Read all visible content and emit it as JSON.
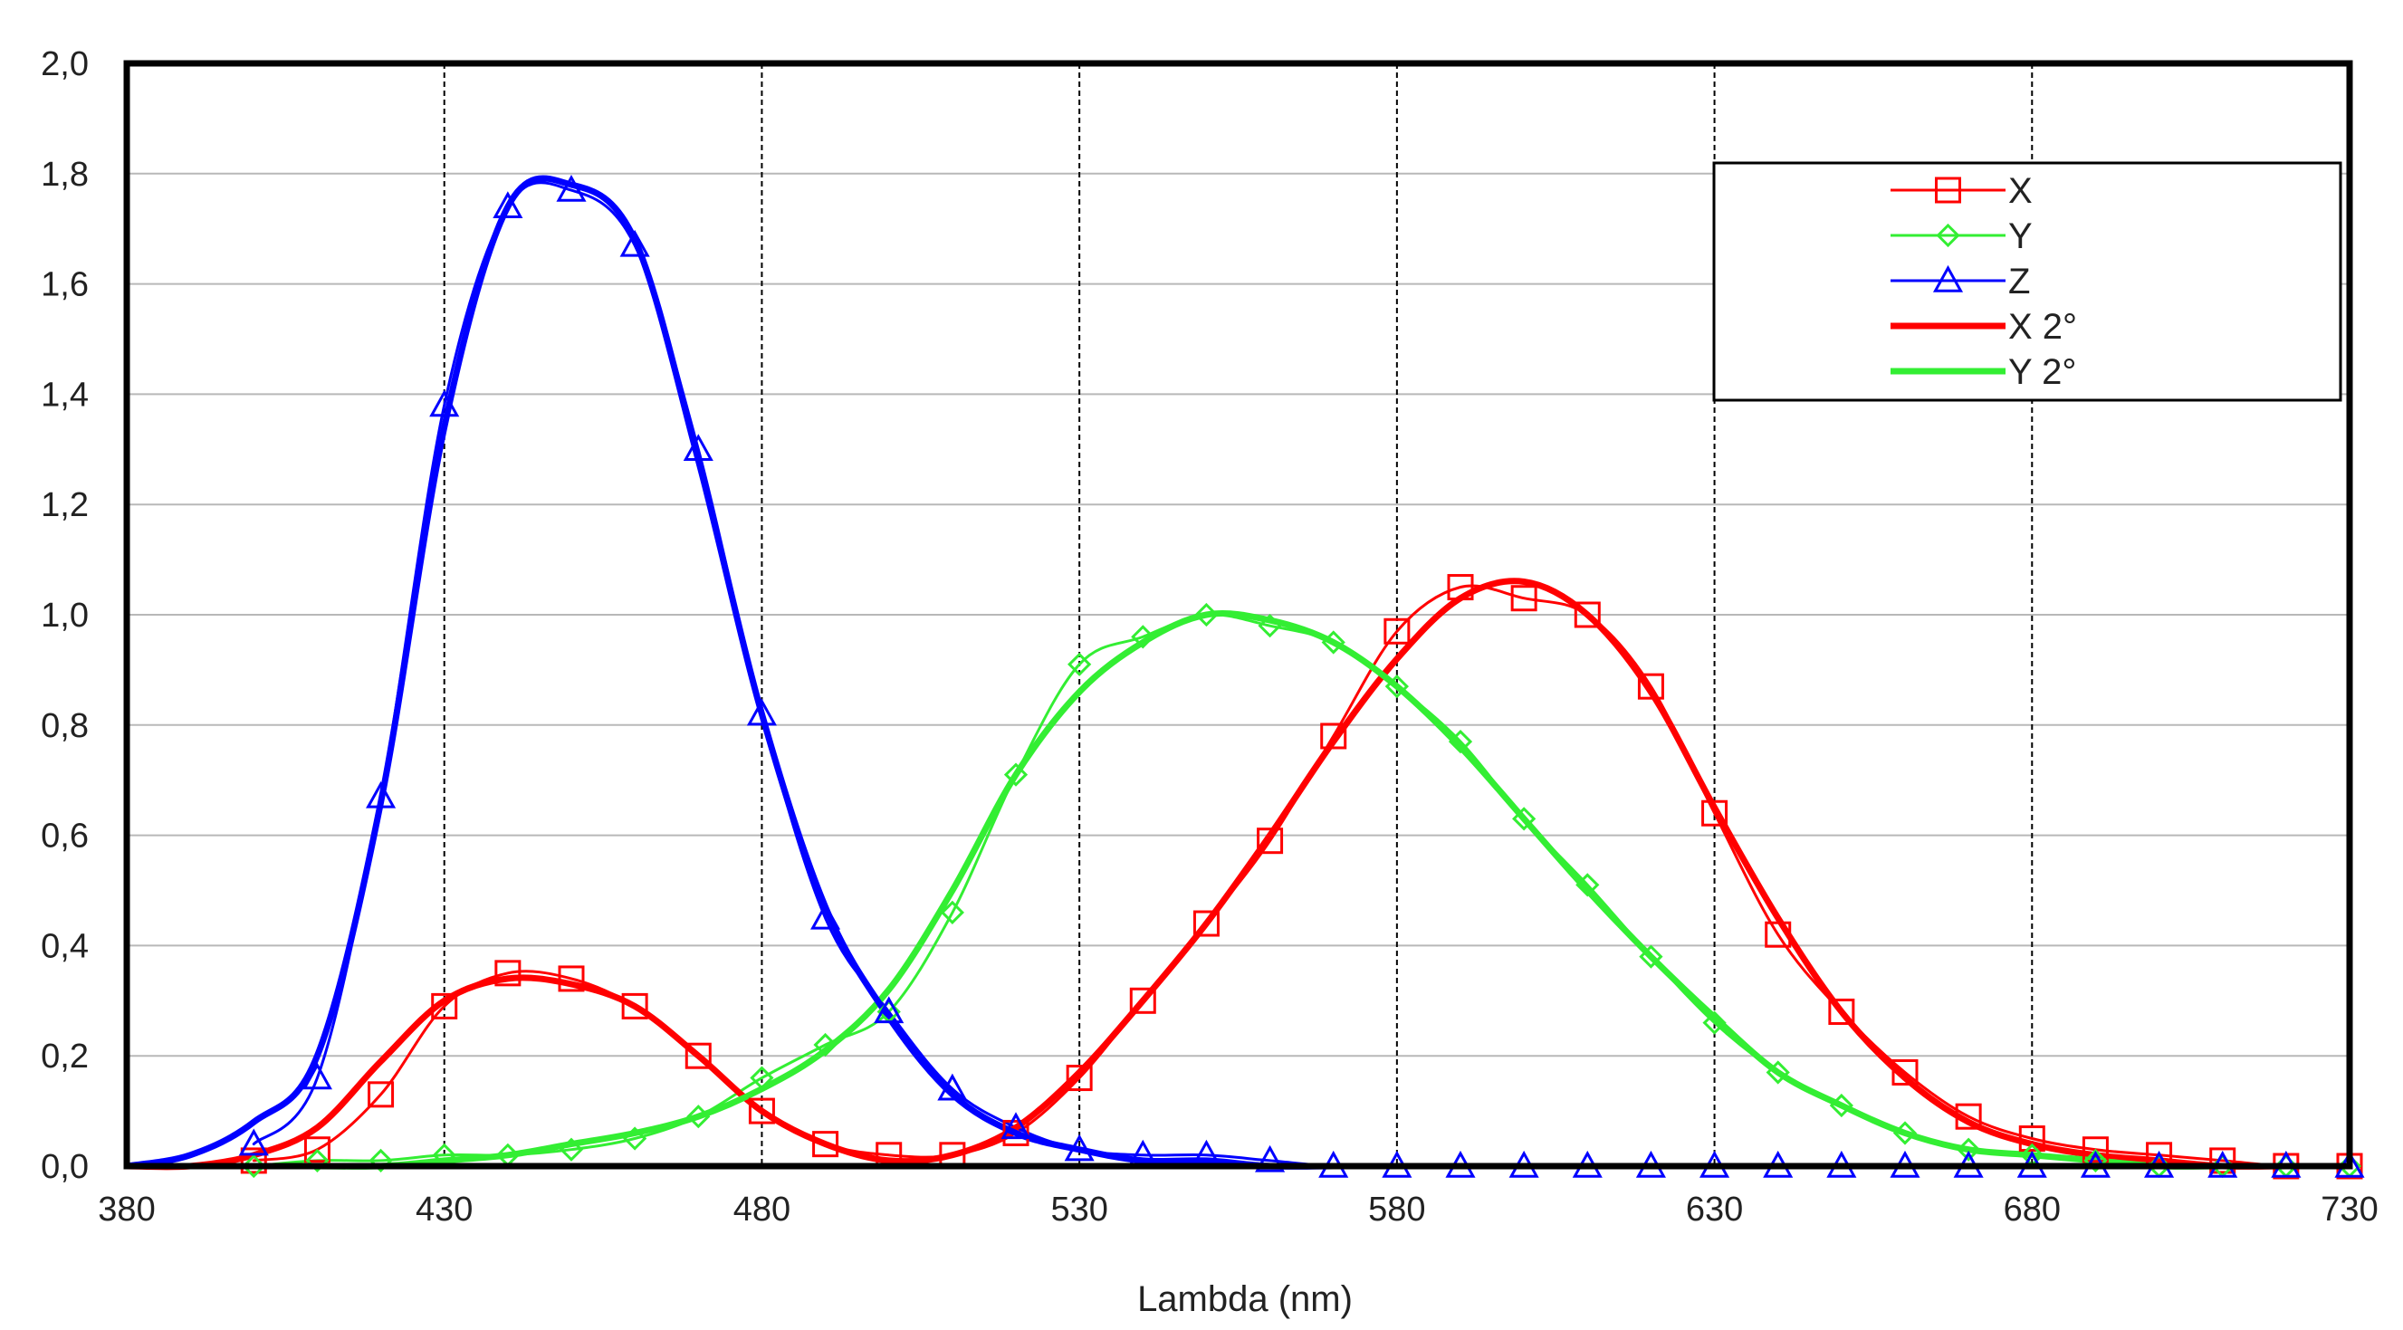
{
  "chart_data": {
    "type": "line",
    "title": "",
    "xlabel": "Lambda (nm)",
    "ylabel": "",
    "xlim": [
      380,
      730
    ],
    "ylim": [
      0,
      2
    ],
    "x_ticks": [
      "380",
      "430",
      "480",
      "530",
      "580",
      "630",
      "680",
      "730"
    ],
    "x_tick_values": [
      380,
      430,
      480,
      530,
      580,
      630,
      680,
      730
    ],
    "y_ticks": [
      "0,0",
      "0,2",
      "0,4",
      "0,6",
      "0,8",
      "1,0",
      "1,2",
      "1,4",
      "1,6",
      "1,8",
      "2,0"
    ],
    "y_tick_values": [
      0,
      0.2,
      0.4,
      0.6,
      0.8,
      1.0,
      1.2,
      1.4,
      1.6,
      1.8,
      2.0
    ],
    "grid": true,
    "legend_position": "top-right",
    "series": [
      {
        "name": "X",
        "color": "#ff0000",
        "marker": "square",
        "x": [
          400,
          410,
          420,
          430,
          440,
          450,
          460,
          470,
          480,
          490,
          500,
          510,
          520,
          530,
          540,
          550,
          560,
          570,
          580,
          590,
          600,
          610,
          620,
          630,
          640,
          650,
          660,
          670,
          680,
          690,
          700,
          710,
          720,
          730
        ],
        "y": [
          0.01,
          0.03,
          0.13,
          0.29,
          0.35,
          0.34,
          0.29,
          0.2,
          0.1,
          0.04,
          0.02,
          0.02,
          0.06,
          0.16,
          0.3,
          0.44,
          0.59,
          0.78,
          0.97,
          1.05,
          1.03,
          1.0,
          0.87,
          0.64,
          0.42,
          0.28,
          0.17,
          0.09,
          0.05,
          0.03,
          0.02,
          0.01,
          0.0,
          0.0
        ]
      },
      {
        "name": "Y",
        "color": "#33ee33",
        "marker": "diamond",
        "x": [
          400,
          410,
          420,
          430,
          440,
          450,
          460,
          470,
          480,
          490,
          500,
          510,
          520,
          530,
          540,
          550,
          560,
          570,
          580,
          590,
          600,
          610,
          620,
          630,
          640,
          650,
          660,
          670,
          680,
          690,
          700,
          710,
          720,
          730
        ],
        "y": [
          0.0,
          0.01,
          0.01,
          0.02,
          0.02,
          0.03,
          0.05,
          0.09,
          0.16,
          0.22,
          0.28,
          0.46,
          0.71,
          0.91,
          0.96,
          1.0,
          0.98,
          0.95,
          0.87,
          0.77,
          0.63,
          0.51,
          0.38,
          0.26,
          0.17,
          0.11,
          0.06,
          0.03,
          0.02,
          0.01,
          0.0,
          0.0,
          0.0,
          0.0
        ]
      },
      {
        "name": "Z",
        "color": "#0000ff",
        "marker": "triangle",
        "x": [
          400,
          410,
          420,
          430,
          440,
          450,
          460,
          470,
          480,
          490,
          500,
          510,
          520,
          530,
          540,
          550,
          560,
          570,
          580,
          590,
          600,
          610,
          620,
          630,
          640,
          650,
          660,
          670,
          680,
          690,
          700,
          710,
          720,
          730
        ],
        "y": [
          0.04,
          0.16,
          0.67,
          1.38,
          1.74,
          1.77,
          1.67,
          1.3,
          0.82,
          0.45,
          0.28,
          0.14,
          0.07,
          0.03,
          0.02,
          0.02,
          0.01,
          0.0,
          0.0,
          0.0,
          0.0,
          0.0,
          0.0,
          0.0,
          0.0,
          0.0,
          0.0,
          0.0,
          0.0,
          0.0,
          0.0,
          0.0,
          0.0,
          0.0
        ]
      },
      {
        "name": "X 2°",
        "color": "#ff0000",
        "marker": "none",
        "x": [
          380,
          390,
          400,
          410,
          420,
          430,
          440,
          450,
          460,
          470,
          480,
          490,
          500,
          510,
          520,
          530,
          540,
          550,
          560,
          570,
          580,
          590,
          600,
          610,
          620,
          630,
          640,
          650,
          660,
          670,
          680,
          690,
          700,
          710,
          720,
          730
        ],
        "y": [
          0.0,
          0.0,
          0.02,
          0.07,
          0.19,
          0.3,
          0.34,
          0.33,
          0.29,
          0.2,
          0.1,
          0.04,
          0.01,
          0.02,
          0.07,
          0.17,
          0.3,
          0.44,
          0.6,
          0.77,
          0.92,
          1.03,
          1.06,
          1.0,
          0.86,
          0.65,
          0.45,
          0.28,
          0.16,
          0.08,
          0.04,
          0.02,
          0.01,
          0.0,
          0.0,
          0.0
        ]
      },
      {
        "name": "Y 2°",
        "color": "#33ee33",
        "marker": "none",
        "x": [
          380,
          390,
          400,
          410,
          420,
          430,
          440,
          450,
          460,
          470,
          480,
          490,
          500,
          510,
          520,
          530,
          540,
          550,
          560,
          570,
          580,
          590,
          600,
          610,
          620,
          630,
          640,
          650,
          660,
          670,
          680,
          690,
          700,
          710,
          720,
          730
        ],
        "y": [
          0.0,
          0.0,
          0.0,
          0.0,
          0.0,
          0.01,
          0.02,
          0.04,
          0.06,
          0.09,
          0.14,
          0.21,
          0.32,
          0.5,
          0.71,
          0.86,
          0.95,
          1.0,
          0.99,
          0.95,
          0.87,
          0.76,
          0.63,
          0.5,
          0.38,
          0.27,
          0.17,
          0.11,
          0.06,
          0.03,
          0.02,
          0.01,
          0.0,
          0.0,
          0.0,
          0.0
        ]
      },
      {
        "name": "",
        "color": "#0000ff",
        "marker": "none",
        "x": [
          380,
          390,
          400,
          410,
          420,
          430,
          440,
          450,
          460,
          470,
          480,
          490,
          500,
          510,
          520,
          530,
          540,
          550,
          560,
          570,
          580,
          590,
          600,
          610,
          620,
          630,
          640,
          650,
          660,
          670,
          680,
          690,
          700,
          710,
          720,
          730
        ],
        "y": [
          0.0,
          0.02,
          0.08,
          0.2,
          0.66,
          1.34,
          1.74,
          1.78,
          1.68,
          1.28,
          0.82,
          0.47,
          0.27,
          0.13,
          0.06,
          0.03,
          0.01,
          0.01,
          0.0,
          0.0,
          0.0,
          0.0,
          0.0,
          0.0,
          0.0,
          0.0,
          0.0,
          0.0,
          0.0,
          0.0,
          0.0,
          0.0,
          0.0,
          0.0,
          0.0,
          0.0
        ]
      }
    ]
  }
}
